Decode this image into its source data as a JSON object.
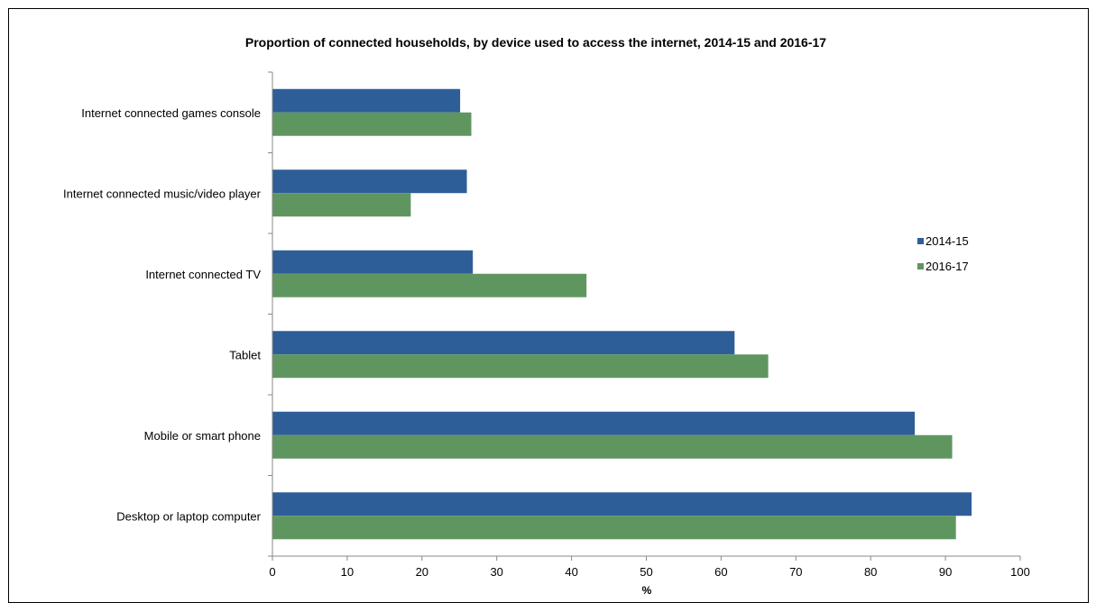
{
  "chart_data": {
    "type": "bar",
    "orientation": "horizontal",
    "title": "Proportion of connected households, by device used to access the internet, 2014-15 and 2016-17",
    "xlabel": "%",
    "ylabel": "",
    "xlim": [
      0,
      100
    ],
    "ticks": [
      0,
      10,
      20,
      30,
      40,
      50,
      60,
      70,
      80,
      90,
      100
    ],
    "grid": false,
    "legend_position": "right",
    "categories": [
      "Internet connected games console",
      "Internet connected music/video player",
      "Internet connected TV",
      "Tablet",
      "Mobile or smart phone",
      "Desktop or laptop computer"
    ],
    "series": [
      {
        "name": "2014-15",
        "color": "#2E5E97",
        "values": [
          25.1,
          26.0,
          26.8,
          61.8,
          85.9,
          93.5
        ]
      },
      {
        "name": "2016-17",
        "color": "#5F9660",
        "values": [
          26.6,
          18.5,
          42.0,
          66.3,
          90.9,
          91.4
        ]
      }
    ]
  }
}
